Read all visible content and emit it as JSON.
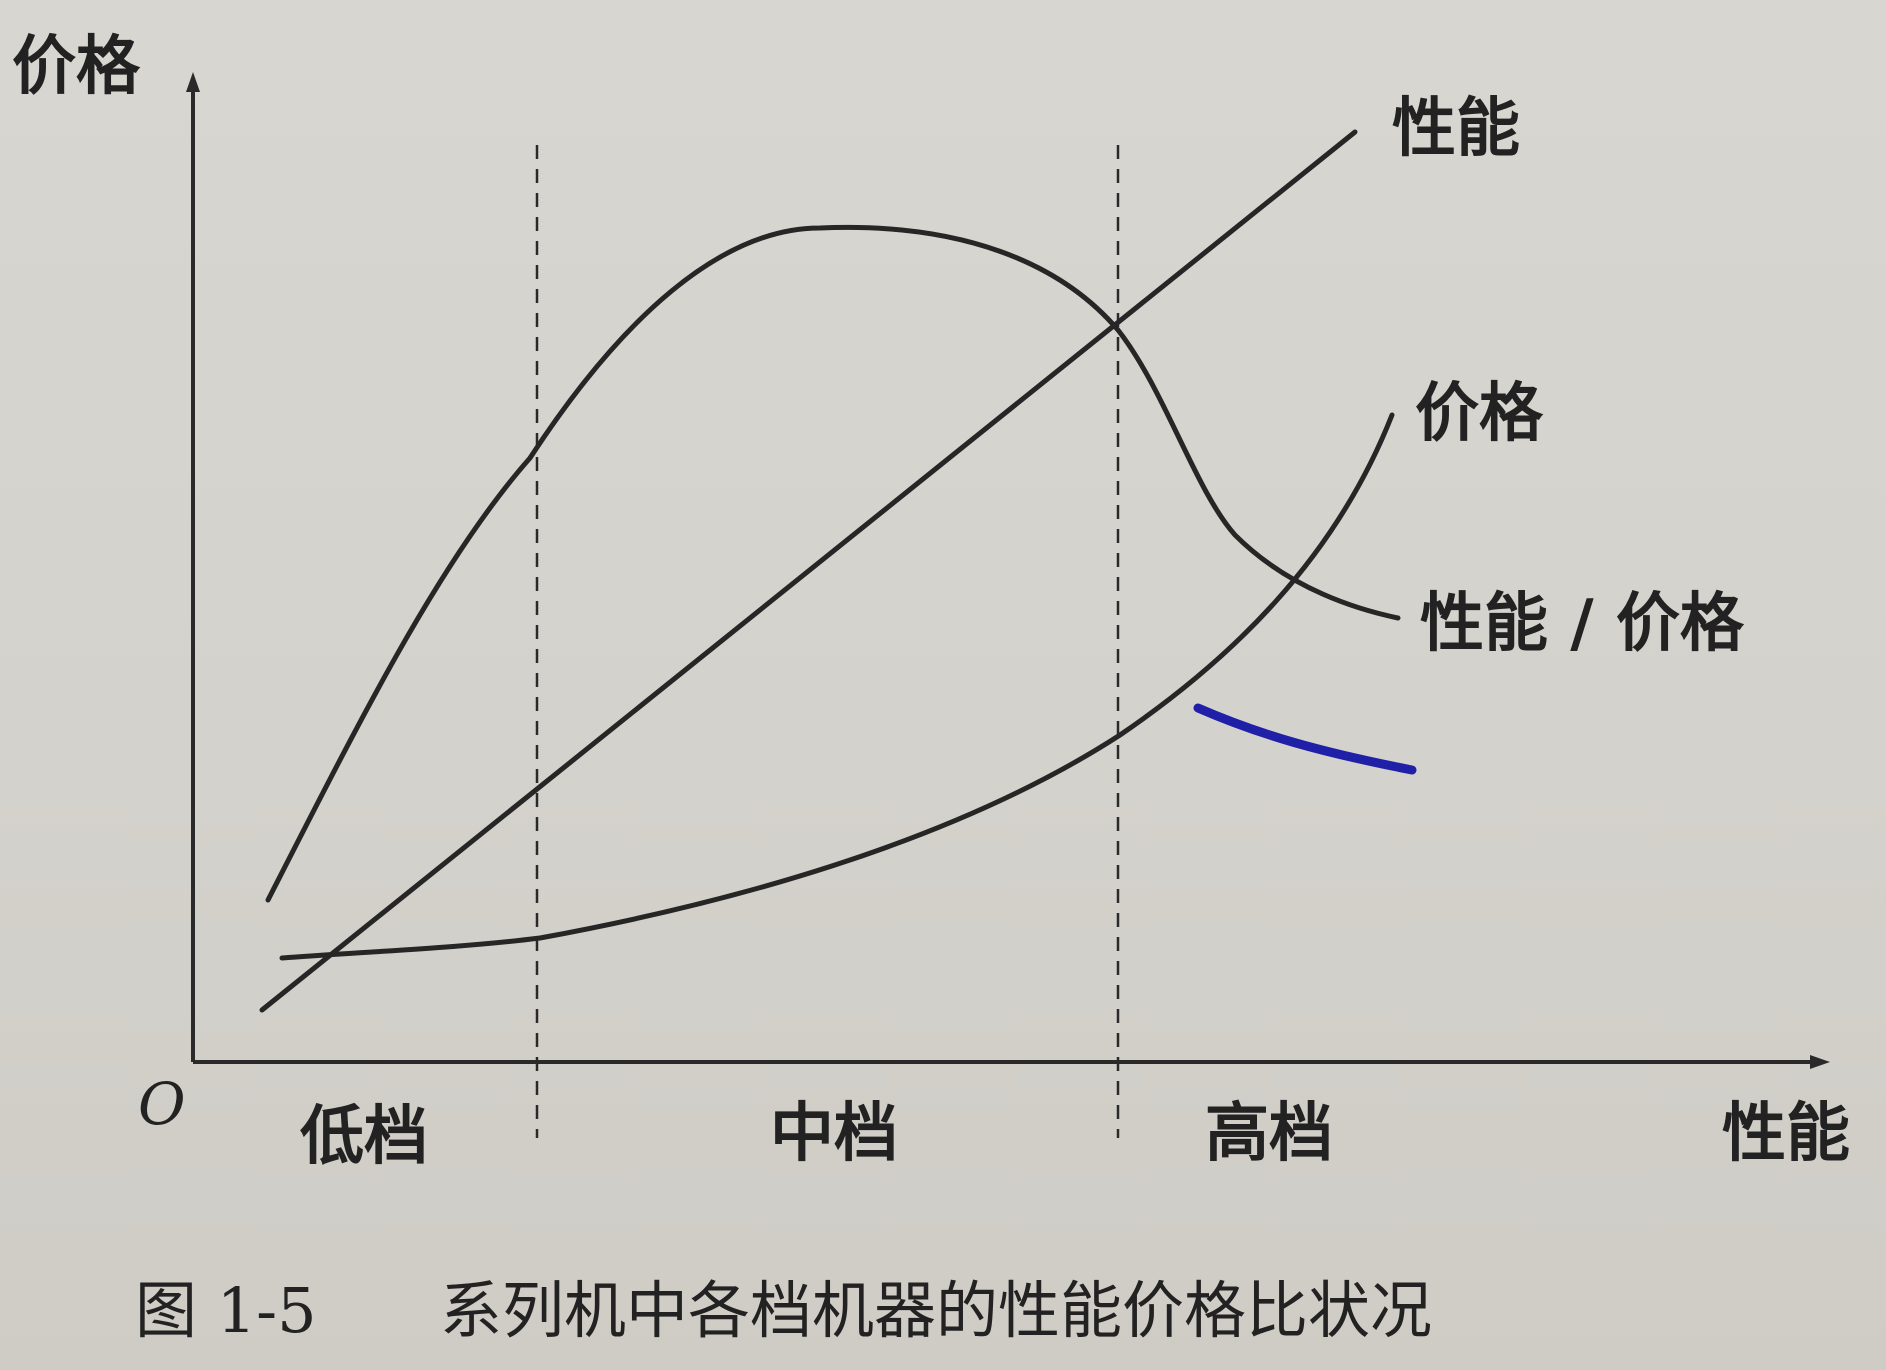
{
  "diagram": {
    "y_axis_label": "价格",
    "x_axis_label": "性能",
    "origin_label": "O",
    "segments": [
      "低档",
      "中档",
      "高档"
    ],
    "curves": {
      "performance": "性能",
      "price": "价格",
      "ratio": "性能 / 价格"
    }
  },
  "caption": {
    "number": "图 1-5",
    "text": "系列机中各档机器的性能价格比状况"
  },
  "colors": {
    "ink": "#262626",
    "paper": "#d6d4ce",
    "pen_mark": "#1f1fa8"
  }
}
